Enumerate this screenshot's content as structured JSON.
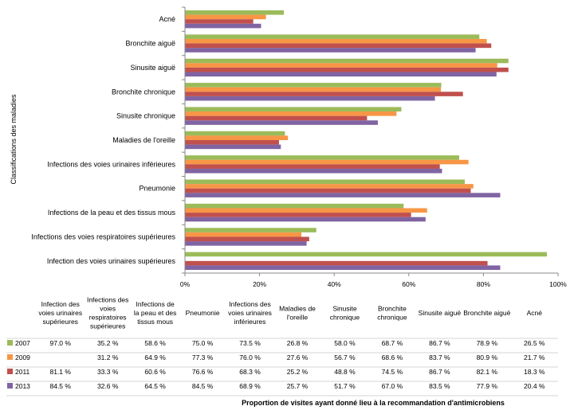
{
  "chart_data": {
    "type": "bar",
    "orientation": "horizontal",
    "ylabel": "Classifications des maladies",
    "xlabel": "Proportion de visites ayant donné lieu à la recommandation d'antimicrobiens",
    "xlim": [
      0,
      100
    ],
    "xticks": [
      "0%",
      "20%",
      "40%",
      "60%",
      "80%",
      "100%"
    ],
    "grid": false,
    "legend_position": "data-table",
    "categories": [
      "Infection des voies urinaires supérieures",
      "Infections des voies respiratoires supérieures",
      "Infections de la peau et des tissus mous",
      "Pneumonie",
      "Infections des voies urinaires inférieures",
      "Maladies de l'oreille",
      "Sinusite chronique",
      "Bronchite chronique",
      "Sinusite aiguë",
      "Bronchite aiguë",
      "Acné"
    ],
    "table_headers": [
      "Infection des voies urinaires supérieures",
      "Infections des voies respiratoires supérieures",
      "Infections de la peau et des tissus mous",
      "Pneumonie",
      "Infections des voies urinaires inférieures",
      "Maladies de l'oreille",
      "Sinusite chronique",
      "Bronchite chronique",
      "Sinusite aiguë",
      "Bronchite aiguë",
      "Acné"
    ],
    "series": [
      {
        "name": "2007",
        "color": "#9BBB59",
        "values": [
          97.0,
          35.2,
          58.6,
          75.0,
          73.5,
          26.8,
          58.0,
          68.7,
          86.7,
          78.9,
          26.5
        ],
        "labels": [
          "97.0 %",
          "35.2 %",
          "58.6 %",
          "75.0 %",
          "73.5 %",
          "26.8 %",
          "58.0 %",
          "68.7 %",
          "86.7 %",
          "78.9 %",
          "26.5 %"
        ]
      },
      {
        "name": "2009",
        "color": "#F79646",
        "values": [
          null,
          31.2,
          64.9,
          77.3,
          76.0,
          27.6,
          56.7,
          68.6,
          83.7,
          80.9,
          21.7
        ],
        "labels": [
          "",
          "31.2 %",
          "64.9 %",
          "77.3 %",
          "76.0 %",
          "27.6 %",
          "56.7 %",
          "68.6 %",
          "83.7 %",
          "80.9 %",
          "21.7 %"
        ]
      },
      {
        "name": "2011",
        "color": "#C0504D",
        "values": [
          81.1,
          33.3,
          60.6,
          76.6,
          68.3,
          25.2,
          48.8,
          74.5,
          86.7,
          82.1,
          18.3
        ],
        "labels": [
          "81.1 %",
          "33.3 %",
          "60.6 %",
          "76.6 %",
          "68.3 %",
          "25.2 %",
          "48.8 %",
          "74.5 %",
          "86.7 %",
          "82.1 %",
          "18.3 %"
        ]
      },
      {
        "name": "2013",
        "color": "#8064A2",
        "values": [
          84.5,
          32.6,
          64.5,
          84.5,
          68.9,
          25.7,
          51.7,
          67.0,
          83.5,
          77.9,
          20.4
        ],
        "labels": [
          "84.5 %",
          "32.6 %",
          "64.5 %",
          "84.5 %",
          "68.9 %",
          "25.7 %",
          "51.7 %",
          "67.0 %",
          "83.5 %",
          "77.9 %",
          "20.4 %"
        ]
      }
    ]
  }
}
